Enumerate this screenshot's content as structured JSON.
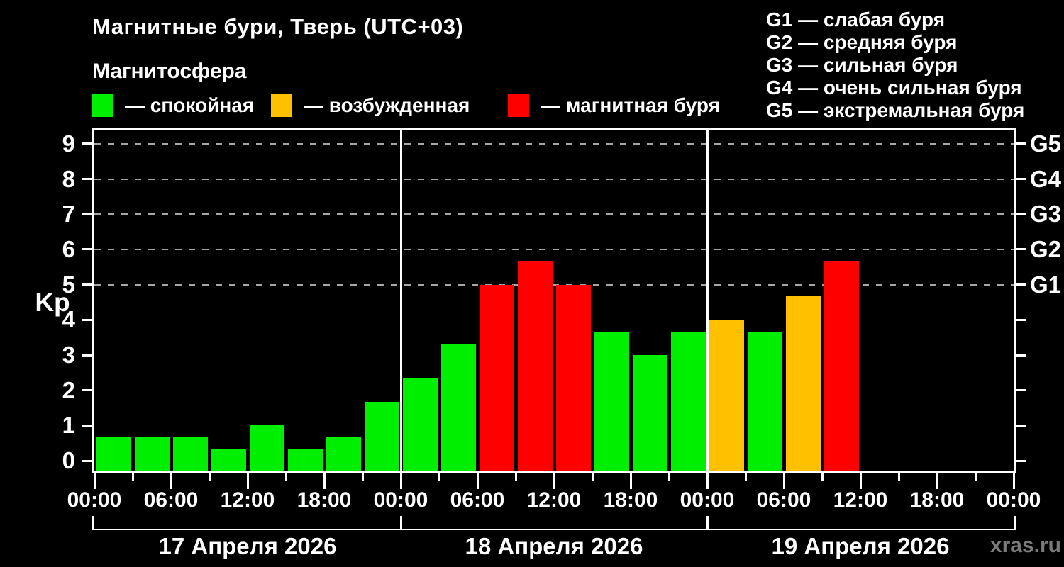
{
  "header": {
    "title": "Магнитные бури, Тверь (UTC+03)",
    "subtitle": "Магнитосфера",
    "legend": [
      {
        "status": "quiet",
        "label": "— спокойная",
        "color": "#00ee00"
      },
      {
        "status": "excited",
        "label": "— возбужденная",
        "color": "#ffc000"
      },
      {
        "status": "storm",
        "label": "— магнитная буря",
        "color": "#ff0000"
      }
    ],
    "storm_scale": [
      {
        "label": "G1 — слабая буря"
      },
      {
        "label": "G2 — средняя буря"
      },
      {
        "label": "G3 — сильная буря"
      },
      {
        "label": "G4 — очень сильная буря"
      },
      {
        "label": "G5 — экстремальная буря"
      }
    ]
  },
  "chart_data": {
    "type": "bar",
    "title": "Магнитные бури, Тверь (UTC+03)",
    "ylabel": "Kp",
    "ylim": [
      -0.3,
      9.4
    ],
    "yticks": [
      0,
      1,
      2,
      3,
      4,
      5,
      6,
      7,
      8,
      9
    ],
    "grid_kp_levels": [
      5,
      6,
      7,
      8,
      9
    ],
    "grid_on": true,
    "right_axis": [
      {
        "kp": 9,
        "label": "G5"
      },
      {
        "kp": 8,
        "label": "G4"
      },
      {
        "kp": 7,
        "label": "G3"
      },
      {
        "kp": 6,
        "label": "G2"
      },
      {
        "kp": 5,
        "label": "G1"
      }
    ],
    "right_ticks_unlabeled": [
      0,
      1,
      2,
      3,
      4
    ],
    "time_tick_labels": [
      "00:00",
      "06:00",
      "12:00",
      "18:00"
    ],
    "hours_per_bar": 3,
    "status_colors": {
      "quiet": "#00ee00",
      "excited": "#ffc000",
      "storm": "#ff0000"
    },
    "days": [
      {
        "date": "17 Апреля 2026",
        "values": [
          0.67,
          0.67,
          0.67,
          0.33,
          1.0,
          0.33,
          0.67,
          1.67
        ],
        "status": [
          "quiet",
          "quiet",
          "quiet",
          "quiet",
          "quiet",
          "quiet",
          "quiet",
          "quiet"
        ]
      },
      {
        "date": "18 Апреля 2026",
        "values": [
          2.33,
          3.33,
          5.0,
          5.67,
          5.0,
          3.67,
          3.0,
          3.67
        ],
        "status": [
          "quiet",
          "quiet",
          "storm",
          "storm",
          "storm",
          "quiet",
          "quiet",
          "quiet"
        ]
      },
      {
        "date": "19 Апреля 2026",
        "values": [
          4.0,
          3.67,
          4.67,
          5.67,
          null,
          null,
          null,
          null
        ],
        "status": [
          "excited",
          "quiet",
          "excited",
          "storm",
          null,
          null,
          null,
          null
        ]
      }
    ]
  },
  "watermark": "xras.ru"
}
